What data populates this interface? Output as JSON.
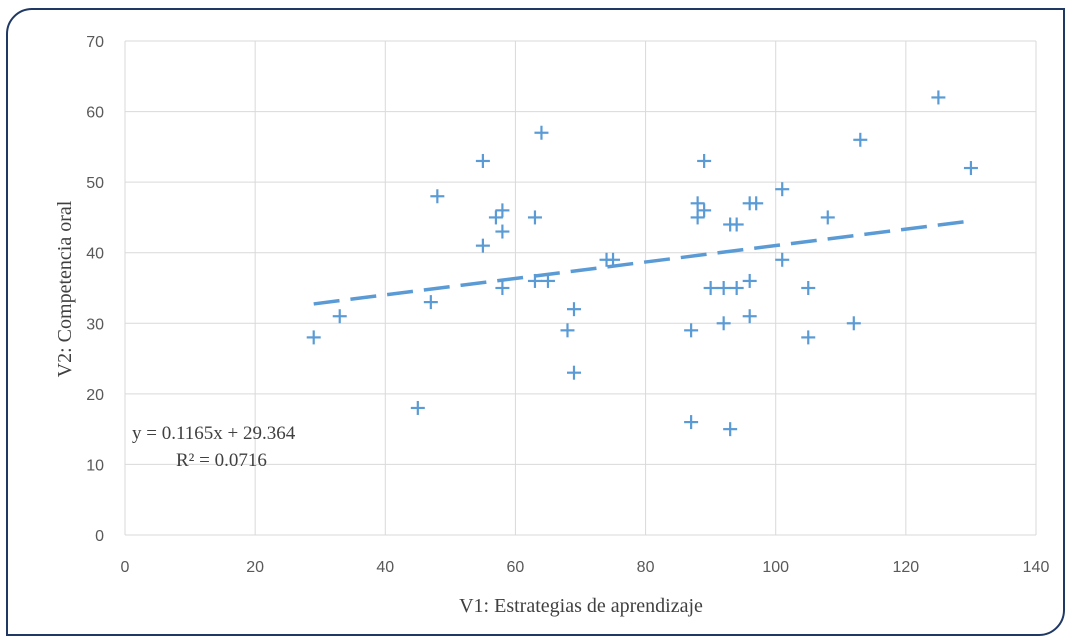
{
  "chart_data": {
    "type": "scatter",
    "title": "",
    "xlabel": "V1: Estrategias de aprendizaje",
    "ylabel": "V2: Competencia oral",
    "xlim": [
      0,
      140
    ],
    "ylim": [
      0,
      70
    ],
    "xticks": [
      0,
      20,
      40,
      60,
      80,
      100,
      120,
      140
    ],
    "yticks": [
      0,
      10,
      20,
      30,
      40,
      50,
      60,
      70
    ],
    "x_tick_labels": [
      "0",
      "20",
      "40",
      "60",
      "80",
      "100",
      "120",
      "140"
    ],
    "y_tick_labels": [
      "0",
      "10",
      "20",
      "30",
      "40",
      "50",
      "60",
      "70"
    ],
    "grid": true,
    "marker": "plus",
    "marker_color": "#5b9bd5",
    "points": [
      [
        29,
        28
      ],
      [
        33,
        31
      ],
      [
        45,
        18
      ],
      [
        47,
        33
      ],
      [
        48,
        48
      ],
      [
        55,
        53
      ],
      [
        55,
        41
      ],
      [
        57,
        45
      ],
      [
        58,
        46
      ],
      [
        58,
        43
      ],
      [
        58,
        35
      ],
      [
        63,
        45
      ],
      [
        63,
        36
      ],
      [
        64,
        57
      ],
      [
        65,
        36
      ],
      [
        68,
        29
      ],
      [
        69,
        32
      ],
      [
        69,
        23
      ],
      [
        74,
        39
      ],
      [
        75,
        39
      ],
      [
        87,
        29
      ],
      [
        87,
        16
      ],
      [
        88,
        47
      ],
      [
        88,
        45
      ],
      [
        89,
        46
      ],
      [
        89,
        53
      ],
      [
        90,
        35
      ],
      [
        92,
        35
      ],
      [
        92,
        30
      ],
      [
        93,
        44
      ],
      [
        93,
        15
      ],
      [
        94,
        44
      ],
      [
        94,
        35
      ],
      [
        96,
        47
      ],
      [
        96,
        36
      ],
      [
        96,
        31
      ],
      [
        97,
        47
      ],
      [
        101,
        49
      ],
      [
        101,
        39
      ],
      [
        105,
        35
      ],
      [
        105,
        28
      ],
      [
        108,
        45
      ],
      [
        112,
        30
      ],
      [
        113,
        56
      ],
      [
        125,
        62
      ],
      [
        130,
        52
      ]
    ],
    "trendline": {
      "type": "linear",
      "slope": 0.1165,
      "intercept": 29.364,
      "x_range": [
        29,
        130
      ],
      "style": "dashed",
      "color": "#5b9bd5",
      "equation_label": "y = 0.1165x + 29.364",
      "r2_label": "R² = 0.0716"
    }
  }
}
